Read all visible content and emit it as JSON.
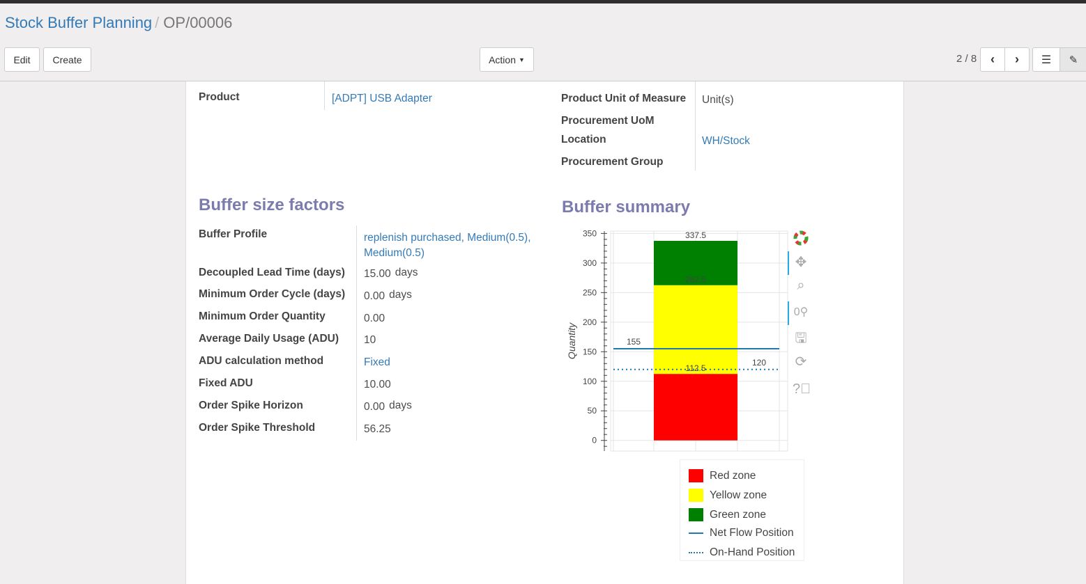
{
  "breadcrumb": {
    "parent": "Stock Buffer Planning",
    "current": "OP/00006"
  },
  "toolbar": {
    "edit": "Edit",
    "create": "Create",
    "action": "Action",
    "pager": "2 / 8"
  },
  "form": {
    "product_label": "Product",
    "product_value": "[ADPT] USB Adapter",
    "uom_label": "Product Unit of Measure",
    "uom_value": "Unit(s)",
    "proc_uom_label": "Procurement UoM",
    "location_label": "Location",
    "location_value": "WH/Stock",
    "proc_group_label": "Procurement Group"
  },
  "factors": {
    "title": "Buffer size factors",
    "rows": [
      {
        "label": "Buffer Profile",
        "value": "replenish purchased, Medium(0.5), Medium(0.5)",
        "link": true
      },
      {
        "label": "Decoupled Lead Time (days)",
        "value": "15.00",
        "unit": "days"
      },
      {
        "label": "Minimum Order Cycle (days)",
        "value": "0.00",
        "unit": "days"
      },
      {
        "label": "Minimum Order Quantity",
        "value": "0.00"
      },
      {
        "label": "Average Daily Usage (ADU)",
        "value": "10"
      },
      {
        "label": "ADU calculation method",
        "value": "Fixed",
        "link": true
      },
      {
        "label": "Fixed ADU",
        "value": "10.00"
      },
      {
        "label": "Order Spike Horizon",
        "value": "0.00",
        "unit": "days"
      },
      {
        "label": "Order Spike Threshold",
        "value": "56.25"
      }
    ]
  },
  "summary": {
    "title": "Buffer summary"
  },
  "chart_data": {
    "type": "bar",
    "stacked": true,
    "ylabel": "Quantity",
    "ylim": [
      -18,
      354
    ],
    "yticks": [
      0,
      50,
      100,
      150,
      200,
      250,
      300,
      350
    ],
    "grid": true,
    "legend_position": "below",
    "series": [
      {
        "name": "Red zone",
        "bottom": 0,
        "top": 112.5,
        "color": "#ff0000"
      },
      {
        "name": "Yellow zone",
        "bottom": 112.5,
        "top": 262.5,
        "color": "#ffff00"
      },
      {
        "name": "Green zone",
        "bottom": 262.5,
        "top": 337.5,
        "color": "#008000"
      }
    ],
    "bar_labels": [
      "112.5",
      "262.5",
      "337.5"
    ],
    "lines": [
      {
        "name": "Net Flow Position",
        "value": 155,
        "label": "155",
        "style": "solid",
        "color": "#1f77b4"
      },
      {
        "name": "On-Hand Position",
        "value": 120,
        "label": "120",
        "style": "dotted",
        "color": "#1f77b4"
      }
    ],
    "tools": [
      "bokeh-logo-icon",
      "pan-icon",
      "box-zoom-icon",
      "wheel-zoom-icon",
      "save-icon",
      "reset-icon",
      "help-icon"
    ]
  }
}
